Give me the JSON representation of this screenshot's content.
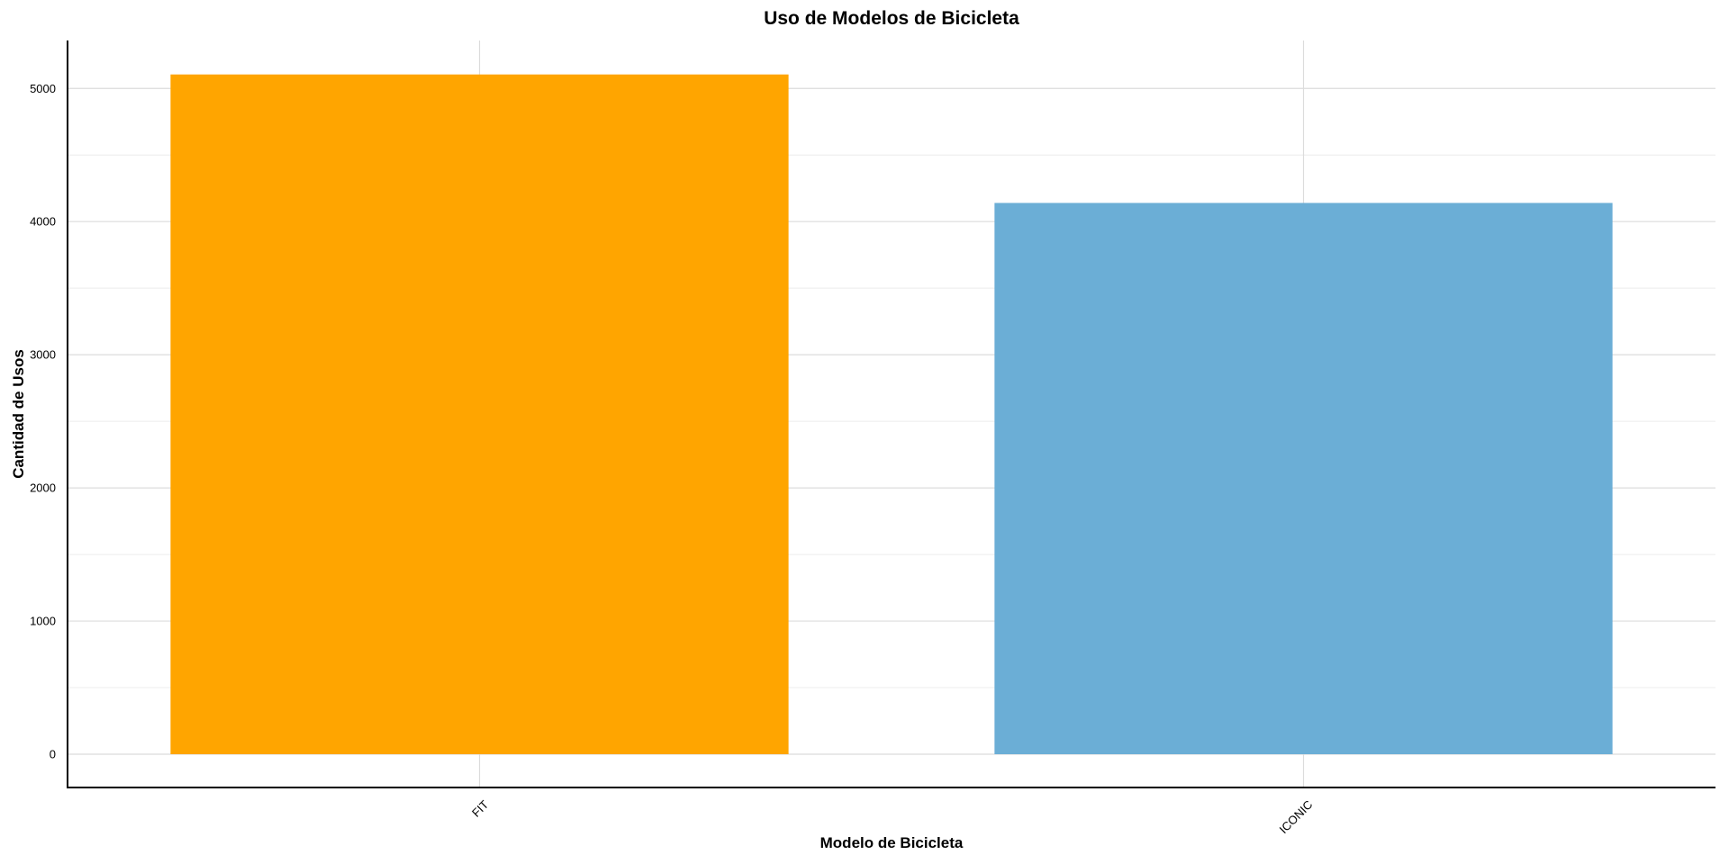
{
  "chart_data": {
    "type": "bar",
    "title": "Uso de Modelos de Bicicleta",
    "xlabel": "Modelo de Bicicleta",
    "ylabel": "Cantidad de Usos",
    "categories": [
      "FIT",
      "ICONIC"
    ],
    "values": [
      5105,
      4140
    ],
    "colors": [
      "#FFA500",
      "#6BAED6"
    ],
    "ylim": [
      -250,
      5360
    ],
    "yticks": [
      0,
      1000,
      2000,
      3000,
      4000,
      5000
    ],
    "grid": true,
    "legend": "none"
  }
}
